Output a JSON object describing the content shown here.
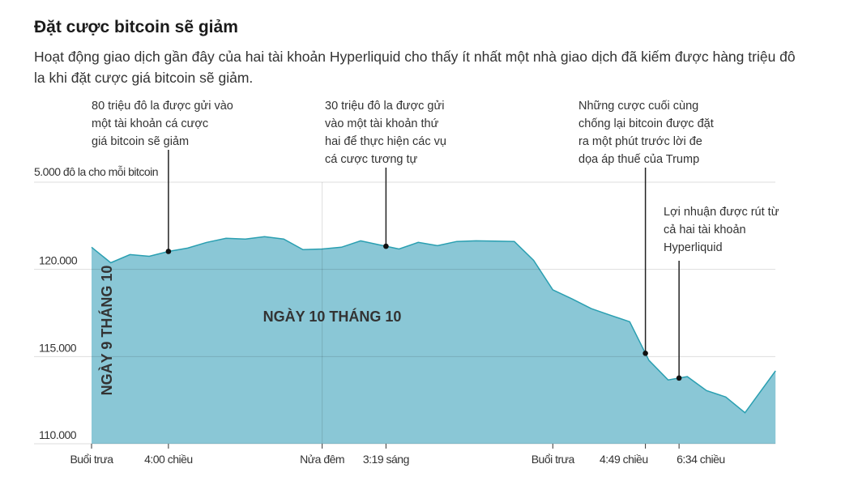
{
  "title": "Đặt cược bitcoin sẽ giảm",
  "subtitle": "Hoạt động giao dịch gần đây của hai tài khoản Hyperliquid cho thấy ít nhất một nhà giao dịch đã kiếm được hàng triệu đô la khi đặt cược giá bitcoin sẽ giảm.",
  "chart_data": {
    "type": "area",
    "title": "Đặt cược bitcoin sẽ giảm",
    "ylabel": "5.000 đô la cho mỗi bitcoin",
    "ylim": [
      110000,
      125000
    ],
    "yticks": [
      "120.000",
      "115.000",
      "110.000"
    ],
    "ytick_values": [
      120000,
      115000,
      110000
    ],
    "grid": true,
    "colors": {
      "fill": "#8ac7d6",
      "line": "#2a9fb1",
      "text": "#333333"
    },
    "x": [
      "9/10 12:00",
      "9/10 13:00",
      "9/10 14:00",
      "9/10 15:00",
      "9/10 16:00",
      "9/10 17:00",
      "9/10 18:00",
      "9/10 19:00",
      "9/10 20:00",
      "9/10 21:00",
      "9/10 22:00",
      "9/10 23:00",
      "10/10 00:00",
      "10/10 01:00",
      "10/10 02:00",
      "10/10 03:00",
      "10/10 04:00",
      "10/10 05:00",
      "10/10 06:00",
      "10/10 07:00",
      "10/10 08:00",
      "10/10 09:00",
      "10/10 10:00",
      "10/10 11:00",
      "10/10 12:00",
      "10/10 13:00",
      "10/10 14:00",
      "10/10 15:00",
      "10/10 16:00",
      "10/10 17:00",
      "10/10 18:00",
      "10/10 19:00",
      "10/10 20:00",
      "10/10 21:00",
      "10/10 22:00",
      "10/10 23:00"
    ],
    "values": [
      121270,
      120380,
      120850,
      120750,
      121030,
      121220,
      121550,
      121780,
      121740,
      121880,
      121740,
      121130,
      121170,
      121270,
      121640,
      121400,
      121170,
      121550,
      121360,
      121600,
      121640,
      121620,
      121600,
      120520,
      118830,
      118310,
      117750,
      117370,
      117000,
      114790,
      113660,
      113850,
      113050,
      112680,
      111780,
      113290
    ],
    "xticks": [
      {
        "label": "Buổi trưa",
        "hour": 0
      },
      {
        "label": "4:00 chiều",
        "hour": 4
      },
      {
        "label": "Nửa đêm",
        "hour": 12
      },
      {
        "label": "3:19 sáng",
        "hour": 15.32
      },
      {
        "label": "Buổi trưa",
        "hour": 24
      },
      {
        "label": "4:49 chiều",
        "hour": 28.82
      },
      {
        "label": "6:34 chiều",
        "hour": 30.57
      }
    ],
    "day_labels": [
      "NGÀY 9 THÁNG 10",
      "NGÀY 10 THÁNG 10"
    ],
    "annotations": [
      {
        "text": "80 triệu đô la được gửi vào\nmột tài khoản cá cược\ngiá bitcoin sẽ giảm",
        "hour": 4
      },
      {
        "text": "30 triệu đô la được gửi\nvào một tài khoản thứ\nhai để thực hiện các vụ\ncá cược tương tự",
        "hour": 15.32
      },
      {
        "text": "Những cược cuối cùng\nchống lại bitcoin được đặt\nra một phút trước lời đe\ndọa áp thuế của Trump",
        "hour": 28.82
      },
      {
        "text": "Lợi nhuận được rút từ\ncả hai tài khoản\nHyperliquid",
        "hour": 30.57
      }
    ]
  }
}
